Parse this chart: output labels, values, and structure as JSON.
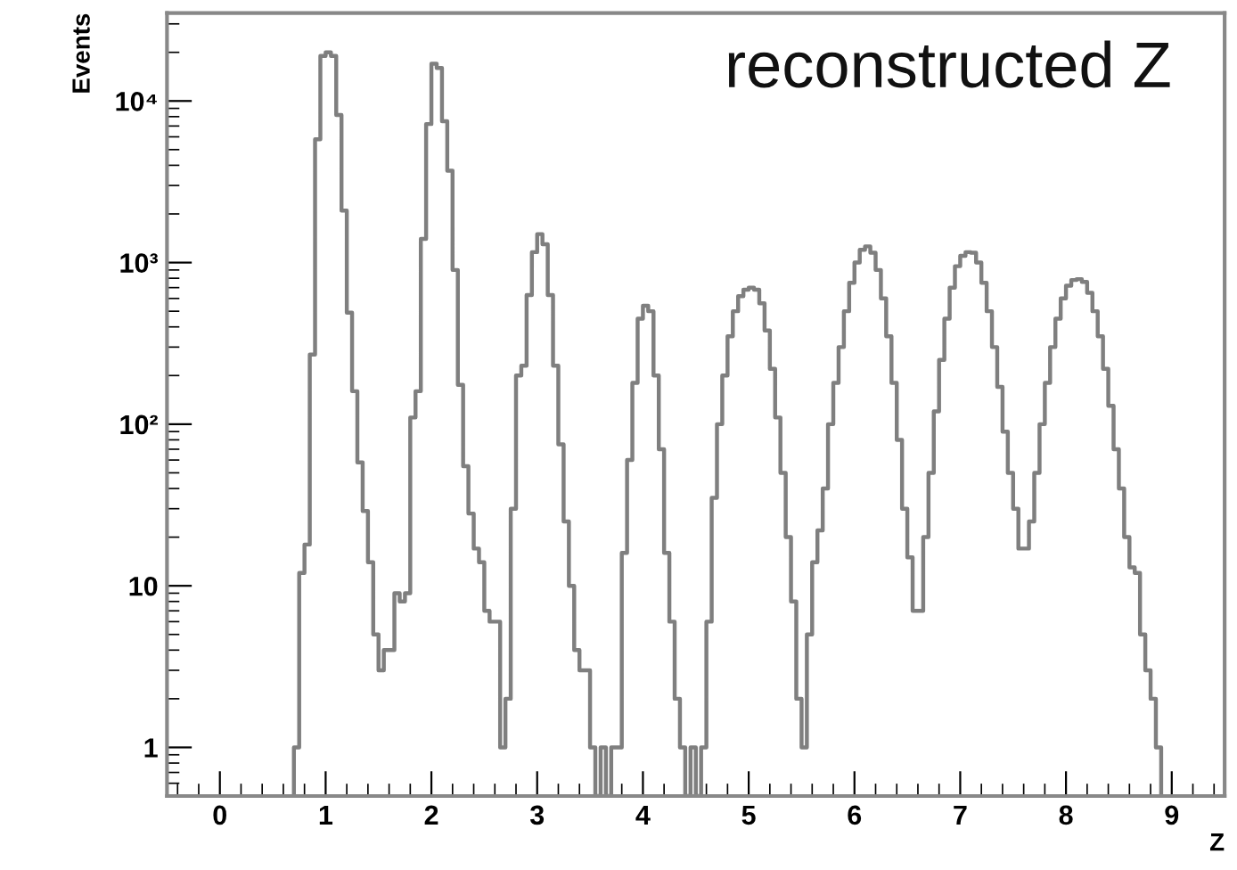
{
  "chart_data": {
    "type": "histogram",
    "xlabel": "Z",
    "ylabel": "Events",
    "annotations": [
      "reconstructed Z"
    ],
    "color": "#7f7f7f",
    "log": "y",
    "grid": false,
    "xlim": [
      -0.5,
      9.5
    ],
    "xticks": [
      0,
      1,
      2,
      3,
      4,
      5,
      6,
      7,
      8,
      9
    ],
    "ylim": [
      0.5,
      35000
    ],
    "yticks": [
      1,
      10,
      {
        "value": 100,
        "label": "10²"
      },
      {
        "value": 1000,
        "label": "10³"
      },
      {
        "value": 10000,
        "label": "10⁴"
      }
    ],
    "bins": [
      0.7,
      0.75,
      0.8,
      0.85,
      0.9,
      0.95,
      1.0,
      1.05,
      1.1,
      1.15,
      1.2,
      1.25,
      1.3,
      1.35,
      1.4,
      1.45,
      1.5,
      1.55,
      1.6,
      1.65,
      1.7,
      1.75,
      1.8,
      1.85,
      1.9,
      1.95,
      2.0,
      2.05,
      2.1,
      2.15,
      2.2,
      2.25,
      2.3,
      2.35,
      2.4,
      2.45,
      2.5,
      2.55,
      2.6,
      2.65,
      2.7,
      2.75,
      2.8,
      2.85,
      2.9,
      2.95,
      3.0,
      3.05,
      3.1,
      3.15,
      3.2,
      3.25,
      3.3,
      3.35,
      3.4,
      3.45,
      3.5,
      3.55,
      3.6,
      3.65,
      3.7,
      3.75,
      3.8,
      3.85,
      3.9,
      3.95,
      4.0,
      4.05,
      4.1,
      4.15,
      4.2,
      4.25,
      4.3,
      4.35,
      4.4,
      4.45,
      4.5,
      4.55,
      4.6,
      4.65,
      4.7,
      4.75,
      4.8,
      4.85,
      4.9,
      4.95,
      5.0,
      5.05,
      5.1,
      5.15,
      5.2,
      5.25,
      5.3,
      5.35,
      5.4,
      5.45,
      5.5,
      5.55,
      5.6,
      5.65,
      5.7,
      5.75,
      5.8,
      5.85,
      5.9,
      5.95,
      6.0,
      6.05,
      6.1,
      6.15,
      6.2,
      6.25,
      6.3,
      6.35,
      6.4,
      6.45,
      6.5,
      6.55,
      6.6,
      6.65,
      6.7,
      6.75,
      6.8,
      6.85,
      6.9,
      6.95,
      7.0,
      7.05,
      7.1,
      7.15,
      7.2,
      7.25,
      7.3,
      7.35,
      7.4,
      7.45,
      7.5,
      7.55,
      7.6,
      7.65,
      7.7,
      7.75,
      7.8,
      7.85,
      7.9,
      7.95,
      8.0,
      8.05,
      8.1,
      8.15,
      8.2,
      8.25,
      8.3,
      8.35,
      8.4,
      8.45,
      8.5,
      8.55,
      8.6,
      8.65,
      8.7,
      8.75,
      8.8,
      8.85,
      8.9
    ],
    "values": [
      1,
      12,
      18,
      270,
      5800,
      19000,
      20000,
      19000,
      8200,
      2100,
      490,
      160,
      58,
      29,
      14,
      5,
      3,
      4,
      4,
      9,
      8,
      9,
      110,
      160,
      1400,
      7200,
      17000,
      16000,
      7500,
      3700,
      900,
      175,
      55,
      28,
      17,
      14,
      7,
      6,
      6,
      1,
      2,
      30,
      200,
      230,
      630,
      1160,
      1500,
      1300,
      630,
      230,
      75,
      25,
      10,
      4,
      3,
      3,
      1,
      null,
      1,
      null,
      1,
      1,
      16,
      60,
      180,
      450,
      540,
      500,
      200,
      70,
      16,
      6,
      2,
      1,
      null,
      1,
      null,
      1,
      6,
      35,
      100,
      200,
      350,
      500,
      620,
      680,
      700,
      680,
      560,
      380,
      220,
      110,
      50,
      20,
      8,
      2,
      1,
      5,
      14,
      22,
      40,
      100,
      180,
      300,
      500,
      750,
      1000,
      1200,
      1260,
      1150,
      900,
      600,
      350,
      180,
      80,
      30,
      15,
      7,
      7,
      20,
      50,
      120,
      250,
      450,
      700,
      950,
      1100,
      1160,
      1150,
      1000,
      750,
      500,
      300,
      170,
      90,
      50,
      30,
      17,
      17,
      25,
      50,
      100,
      180,
      300,
      450,
      600,
      720,
      780,
      790,
      760,
      650,
      500,
      350,
      220,
      130,
      70,
      40,
      20,
      13,
      12,
      5,
      3,
      2,
      1
    ]
  }
}
